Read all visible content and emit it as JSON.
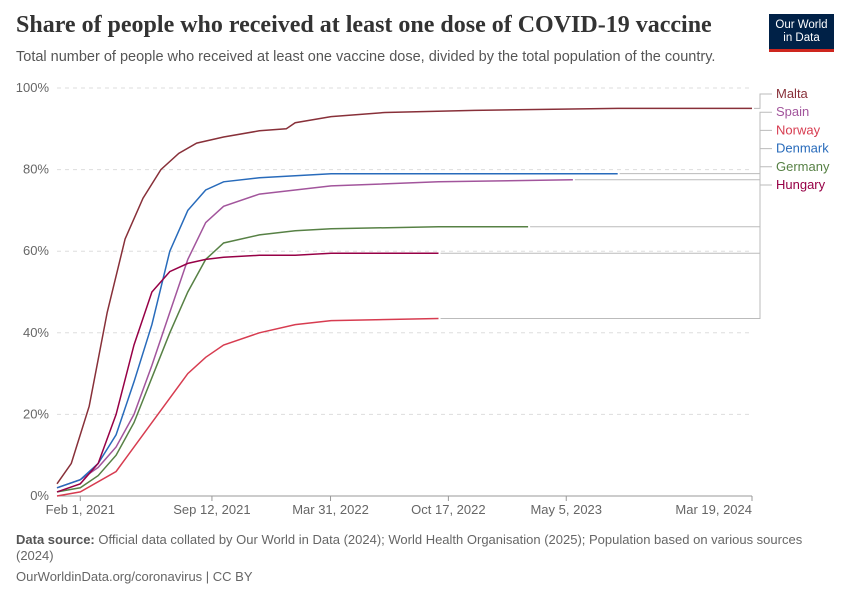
{
  "header": {
    "title": "Share of people who received at least one dose of COVID-19 vaccine",
    "subtitle": "Total number of people who received at least one vaccine dose, divided by the total population of the country.",
    "logo_line1": "Our World",
    "logo_line2": "in Data"
  },
  "footer": {
    "source_label": "Data source:",
    "source_text": "Official data collated by Our World in Data (2024); World Health Organisation (2025); Population based on various sources (2024)",
    "link": "OurWorldinData.org/coronavirus | CC BY"
  },
  "chart_data": {
    "type": "line",
    "title": "Share of people who received at least one dose of COVID-19 vaccine",
    "ylabel": "",
    "xlabel": "",
    "y_ticks": [
      0,
      20,
      40,
      60,
      80,
      100
    ],
    "y_tick_labels": [
      "0%",
      "20%",
      "40%",
      "60%",
      "80%",
      "100%"
    ],
    "ylim": [
      0,
      100
    ],
    "x_range_months": [
      -1.3,
      37.5
    ],
    "x_ticks": [
      {
        "label": "Feb 1, 2021",
        "m": 0
      },
      {
        "label": "Sep 12, 2021",
        "m": 7.35
      },
      {
        "label": "Mar 31, 2022",
        "m": 13.97
      },
      {
        "label": "Oct 17, 2022",
        "m": 20.55
      },
      {
        "label": "May 5, 2023",
        "m": 27.13
      },
      {
        "label": "Mar 19, 2024",
        "m": 37.5
      }
    ],
    "x_unit": "months since Feb 1, 2021",
    "series": [
      {
        "name": "Malta",
        "color": "#883039",
        "x": [
          -1.3,
          -0.5,
          0.5,
          1.5,
          2.5,
          3.5,
          4.5,
          5.5,
          6.5,
          8,
          10,
          11.5,
          12,
          14,
          17,
          22,
          30,
          37.5
        ],
        "values": [
          3,
          8,
          22,
          45,
          63,
          73,
          80,
          84,
          86.5,
          88,
          89.5,
          90,
          91.5,
          93,
          94,
          94.5,
          95,
          95
        ]
      },
      {
        "name": "Spain",
        "color": "#a2559c",
        "x": [
          -1.3,
          0,
          1,
          2,
          3,
          4,
          5,
          6,
          7,
          8,
          10,
          12,
          14,
          20,
          27.5
        ],
        "values": [
          2,
          4,
          7,
          12,
          20,
          32,
          45,
          58,
          67,
          71,
          74,
          75,
          76,
          77,
          77.5
        ]
      },
      {
        "name": "Norway",
        "color": "#d73c50",
        "x": [
          -1.3,
          0,
          2,
          4,
          6,
          7,
          8,
          10,
          12,
          14,
          20
        ],
        "values": [
          0,
          1,
          6,
          18,
          30,
          34,
          37,
          40,
          42,
          43,
          43.5
        ]
      },
      {
        "name": "Denmark",
        "color": "#286bbb",
        "x": [
          -1.3,
          0,
          1,
          2,
          3,
          4,
          5,
          6,
          7,
          8,
          10,
          12,
          14,
          20,
          30
        ],
        "values": [
          2,
          4,
          8,
          15,
          28,
          42,
          60,
          70,
          75,
          77,
          78,
          78.5,
          79,
          79,
          79
        ]
      },
      {
        "name": "Germany",
        "color": "#578145",
        "x": [
          -1.3,
          0,
          1,
          2,
          3,
          4,
          5,
          6,
          7,
          8,
          10,
          12,
          14,
          20,
          25
        ],
        "values": [
          1,
          2,
          5,
          10,
          18,
          29,
          40,
          50,
          58,
          62,
          64,
          65,
          65.5,
          66,
          66
        ]
      },
      {
        "name": "Hungary",
        "color": "#970046",
        "x": [
          -1.3,
          0,
          1,
          2,
          3,
          4,
          5,
          6,
          7,
          8,
          10,
          12,
          14,
          20
        ],
        "values": [
          1,
          3,
          8,
          20,
          37,
          50,
          55,
          57,
          58,
          58.5,
          59,
          59,
          59.5,
          59.5
        ]
      }
    ]
  }
}
